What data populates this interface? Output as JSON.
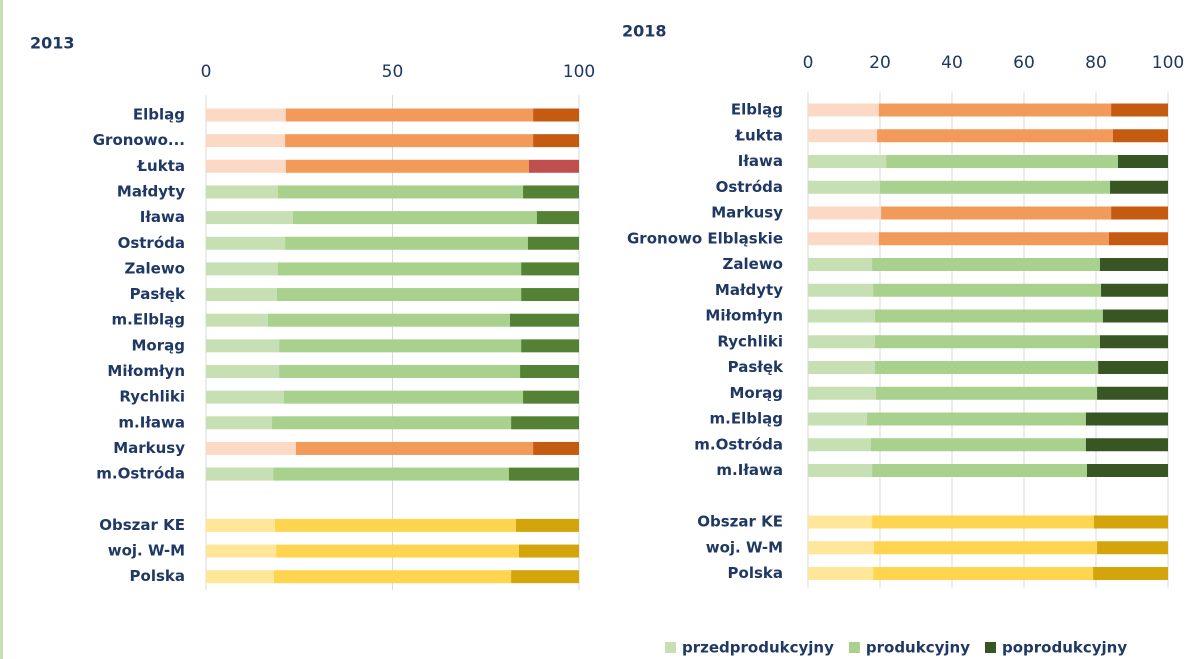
{
  "chart_data": [
    {
      "type": "stacked-bar-horizontal",
      "title": "2013",
      "categories": [
        "Elbląg",
        "Gronowo...",
        "Łukta",
        "Małdyty",
        "Iława",
        "Ostróda",
        "Zalewo",
        "Pasłęk",
        "m.Elbląg",
        "Morąg",
        "Miłomłyn",
        "Rychliki",
        "m.Iława",
        "Markusy",
        "m.Ostróda",
        null,
        "Obszar KE",
        "woj. W-M",
        "Polska"
      ],
      "series": [
        {
          "color": "#c6e0b4",
          "values": [
            21.4,
            21.2,
            21.4,
            19.3,
            23.3,
            21.2,
            19.3,
            19.0,
            16.6,
            19.6,
            19.6,
            20.9,
            17.7,
            24.1,
            18.0,
            null,
            18.5,
            18.8,
            18.2
          ]
        },
        {
          "color": "#a9d18e",
          "values": [
            66.3,
            66.5,
            65.2,
            65.7,
            65.4,
            65.1,
            65.2,
            65.5,
            64.9,
            64.9,
            64.6,
            64.1,
            64.1,
            63.6,
            63.2,
            null,
            64.6,
            65.1,
            63.6
          ]
        },
        {
          "color": "#548235",
          "values": [
            12.3,
            12.3,
            13.4,
            15.0,
            11.3,
            13.7,
            15.5,
            15.5,
            18.5,
            15.5,
            15.8,
            15.0,
            18.2,
            12.3,
            18.8,
            null,
            16.9,
            16.1,
            18.2
          ]
        }
      ],
      "bar_colors": [
        [
          "#fbd9c4",
          "#f19a5a",
          "#c55a11"
        ],
        [
          "#fbd9c4",
          "#f19a5a",
          "#c55a11"
        ],
        [
          "#fbd9c4",
          "#f19a5a",
          "#c0504d"
        ],
        [
          "#c6e0b4",
          "#a9d18e",
          "#548235"
        ],
        [
          "#c6e0b4",
          "#a9d18e",
          "#548235"
        ],
        [
          "#c6e0b4",
          "#a9d18e",
          "#548235"
        ],
        [
          "#c6e0b4",
          "#a9d18e",
          "#548235"
        ],
        [
          "#c6e0b4",
          "#a9d18e",
          "#548235"
        ],
        [
          "#c6e0b4",
          "#a9d18e",
          "#548235"
        ],
        [
          "#c6e0b4",
          "#a9d18e",
          "#548235"
        ],
        [
          "#c6e0b4",
          "#a9d18e",
          "#548235"
        ],
        [
          "#c6e0b4",
          "#a9d18e",
          "#548235"
        ],
        [
          "#c6e0b4",
          "#a9d18e",
          "#548235"
        ],
        [
          "#fbd9c4",
          "#f19a5a",
          "#c55a11"
        ],
        [
          "#c6e0b4",
          "#a9d18e",
          "#548235"
        ],
        null,
        [
          "#ffe699",
          "#ffd54f",
          "#d4a50a"
        ],
        [
          "#ffe699",
          "#ffd54f",
          "#d4a50a"
        ],
        [
          "#ffe699",
          "#ffd54f",
          "#d4a50a"
        ]
      ],
      "xlim": [
        0,
        100
      ],
      "xticks": [
        0,
        50,
        100
      ],
      "grid": true
    },
    {
      "type": "stacked-bar-horizontal",
      "title": "2018",
      "categories": [
        "Elbląg",
        "Łukta",
        "Iława",
        "Ostróda",
        "Markusy",
        "Gronowo Elbląskie",
        "Zalewo",
        "Małdyty",
        "Miłomłyn",
        "Rychliki",
        "Pasłęk",
        "Morąg",
        "m.Elbląg",
        "m.Ostróda",
        "m.Iława",
        null,
        "Obszar KE",
        "woj. W-M",
        "Polska"
      ],
      "series": [
        {
          "name": "przedprodukcyjny",
          "color": "#c6e0b4",
          "values": [
            19.7,
            19.2,
            21.7,
            20.0,
            20.3,
            19.7,
            17.8,
            18.1,
            18.6,
            18.6,
            18.6,
            18.9,
            16.4,
            17.5,
            17.8,
            null,
            17.8,
            18.3,
            18.1
          ]
        },
        {
          "name": "produkcyjny",
          "color": "#a9d18e",
          "values": [
            64.5,
            65.5,
            64.4,
            63.9,
            63.9,
            63.9,
            63.3,
            63.3,
            63.3,
            62.5,
            62.0,
            61.4,
            60.8,
            59.7,
            59.7,
            null,
            61.6,
            62.0,
            61.1
          ]
        },
        {
          "name": "poprodukcyjny",
          "color": "#375623",
          "values": [
            15.8,
            15.3,
            13.9,
            16.1,
            15.8,
            16.4,
            18.9,
            18.6,
            18.1,
            18.9,
            19.4,
            19.7,
            22.8,
            22.8,
            22.5,
            null,
            20.6,
            19.7,
            20.8
          ]
        }
      ],
      "bar_colors": [
        [
          "#fbd9c4",
          "#f19a5a",
          "#c55a11"
        ],
        [
          "#fbd9c4",
          "#f19a5a",
          "#c55a11"
        ],
        [
          "#c6e0b4",
          "#a9d18e",
          "#375623"
        ],
        [
          "#c6e0b4",
          "#a9d18e",
          "#375623"
        ],
        [
          "#fbd9c4",
          "#f19a5a",
          "#c55a11"
        ],
        [
          "#fbd9c4",
          "#f19a5a",
          "#c55a11"
        ],
        [
          "#c6e0b4",
          "#a9d18e",
          "#375623"
        ],
        [
          "#c6e0b4",
          "#a9d18e",
          "#375623"
        ],
        [
          "#c6e0b4",
          "#a9d18e",
          "#375623"
        ],
        [
          "#c6e0b4",
          "#a9d18e",
          "#375623"
        ],
        [
          "#c6e0b4",
          "#a9d18e",
          "#375623"
        ],
        [
          "#c6e0b4",
          "#a9d18e",
          "#375623"
        ],
        [
          "#c6e0b4",
          "#a9d18e",
          "#375623"
        ],
        [
          "#c6e0b4",
          "#a9d18e",
          "#375623"
        ],
        [
          "#c6e0b4",
          "#a9d18e",
          "#375623"
        ],
        null,
        [
          "#ffe699",
          "#ffd54f",
          "#d4a50a"
        ],
        [
          "#ffe699",
          "#ffd54f",
          "#d4a50a"
        ],
        [
          "#ffe699",
          "#ffd54f",
          "#d4a50a"
        ]
      ],
      "xlim": [
        0,
        100
      ],
      "xticks": [
        0,
        20,
        40,
        60,
        80,
        100
      ],
      "grid": true
    }
  ]
}
